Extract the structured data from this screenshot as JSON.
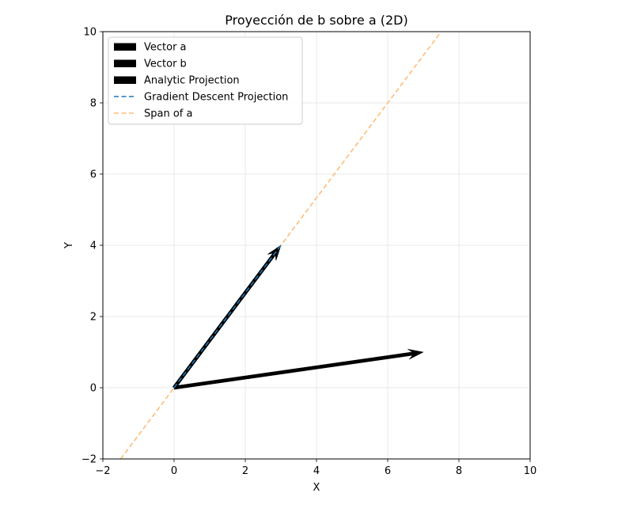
{
  "chart_data": {
    "type": "line",
    "title": "Proyección de b sobre a (2D)",
    "xlabel": "X",
    "ylabel": "Y",
    "xlim": [
      -2,
      10
    ],
    "ylim": [
      -2,
      10
    ],
    "xticks": [
      -2,
      0,
      2,
      4,
      6,
      8,
      10
    ],
    "yticks": [
      -2,
      0,
      2,
      4,
      6,
      8,
      10
    ],
    "grid": true,
    "legend_position": "top-left",
    "vectors": [
      {
        "name": "Vector a",
        "origin": [
          0,
          0
        ],
        "tip": [
          3,
          4
        ],
        "color": "#000000"
      },
      {
        "name": "Vector b",
        "origin": [
          0,
          0
        ],
        "tip": [
          7,
          1
        ],
        "color": "#000000"
      },
      {
        "name": "Analytic Projection",
        "origin": [
          0,
          0
        ],
        "tip": [
          3,
          4
        ],
        "color": "#000000"
      }
    ],
    "lines": [
      {
        "name": "Gradient Descent Projection",
        "style": "dashed",
        "color": "#1f77b4",
        "points": [
          [
            0,
            0
          ],
          [
            3,
            4
          ]
        ]
      },
      {
        "name": "Span of a",
        "style": "dashed",
        "color": "#ffbb78",
        "points": [
          [
            -1.5,
            -2
          ],
          [
            7.5,
            10
          ]
        ]
      }
    ],
    "legend": [
      {
        "label": "Vector a",
        "kind": "patch",
        "color": "#000000"
      },
      {
        "label": "Vector b",
        "kind": "patch",
        "color": "#000000"
      },
      {
        "label": "Analytic Projection",
        "kind": "patch",
        "color": "#000000"
      },
      {
        "label": "Gradient Descent Projection",
        "kind": "dashed",
        "color": "#1f77b4"
      },
      {
        "label": "Span of a",
        "kind": "dashed",
        "color": "#ffbb78"
      }
    ]
  }
}
